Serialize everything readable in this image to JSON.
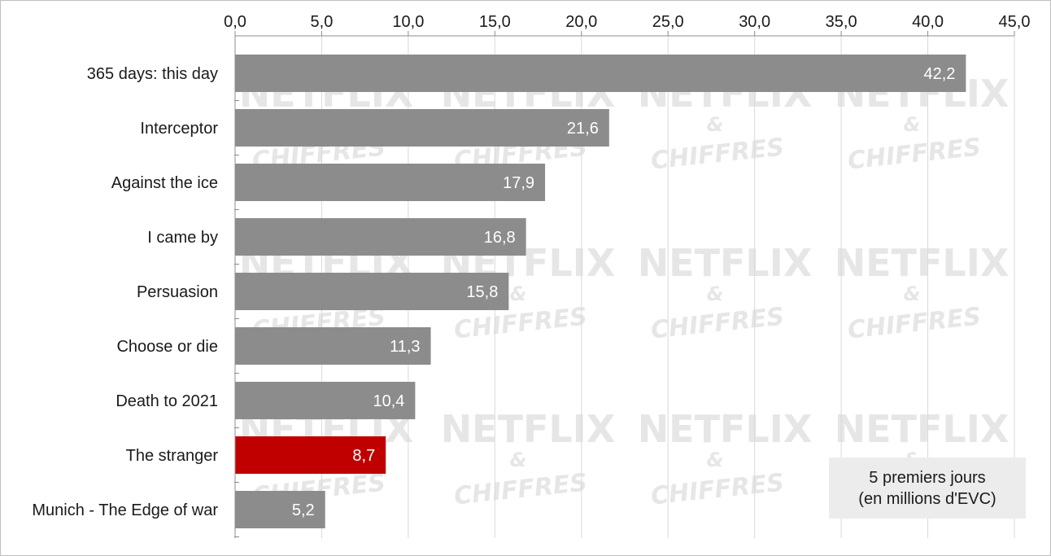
{
  "chart_data": {
    "type": "bar",
    "orientation": "horizontal",
    "categories": [
      "365 days: this day",
      "Interceptor",
      "Against the ice",
      "I came by",
      "Persuasion",
      "Choose or die",
      "Death to 2021",
      "The stranger",
      "Munich - The Edge of war"
    ],
    "values": [
      42.2,
      21.6,
      17.9,
      16.8,
      15.8,
      11.3,
      10.4,
      8.7,
      5.2
    ],
    "value_labels": [
      "42,2",
      "21,6",
      "17,9",
      "16,8",
      "15,8",
      "11,3",
      "10,4",
      "8,7",
      "5,2"
    ],
    "xlim": [
      0,
      45
    ],
    "x_ticks": [
      "0,0",
      "5,0",
      "10,0",
      "15,0",
      "20,0",
      "25,0",
      "30,0",
      "35,0",
      "40,0",
      "45,0"
    ],
    "x_axis_position": "top",
    "grid": "vertical",
    "bar_color": "#8c8c8c",
    "highlight_color": "#c00000",
    "highlight_category": "The stranger",
    "legend_placement": "bottom-right",
    "note_lines": [
      "5 premiers jours",
      "(en millions d'EVC)"
    ],
    "watermark": [
      "NETFLIX",
      "&",
      "CHIFFRES"
    ]
  }
}
